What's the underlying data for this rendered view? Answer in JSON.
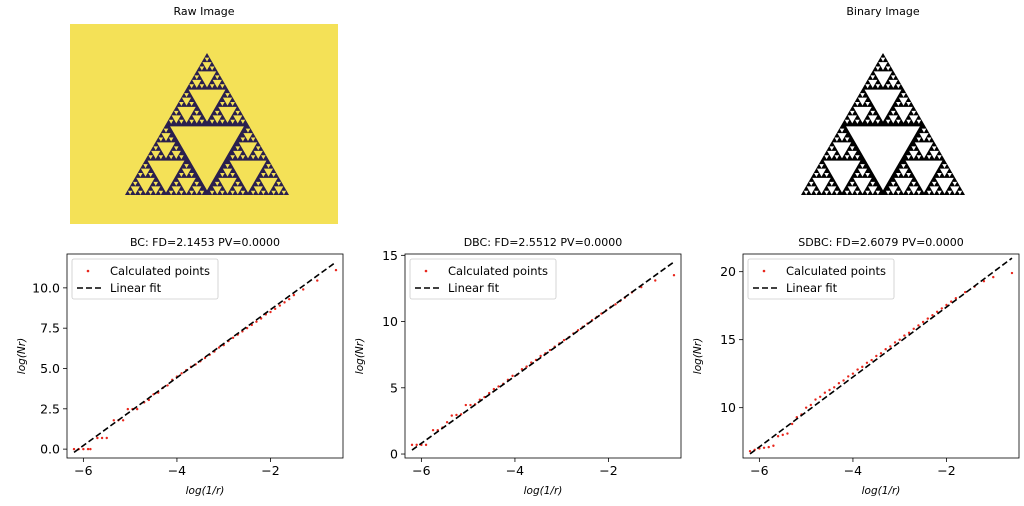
{
  "raw_image": {
    "title": "Raw Image",
    "background": "#f4e157",
    "fractal_color": "#2a1f4e",
    "hole_color": "#f4e157"
  },
  "binary_image": {
    "title": "Binary Image",
    "background": "#ffffff",
    "fractal_color": "#000000",
    "hole_color": "#ffffff"
  },
  "colors": {
    "points": "#e8261c",
    "fit": "#000000"
  },
  "legend": {
    "points_label": "Calculated points",
    "fit_label": "Linear fit",
    "placement": "upper-left"
  },
  "chart_data": [
    {
      "type": "scatter",
      "title": "BC: FD=2.1453 PV=0.0000",
      "xlabel": "log(1/r)",
      "ylabel": "log(Nr)",
      "xlim": [
        -6.35,
        -0.45
      ],
      "ylim": [
        -0.55,
        12.1
      ],
      "xticks": [
        -6,
        -4,
        -2
      ],
      "xtick_labels": [
        "−6",
        "−4",
        "−2"
      ],
      "yticks": [
        0,
        2.5,
        5,
        7.5,
        10
      ],
      "ytick_labels": [
        "0.0",
        "2.5",
        "5.0",
        "7.5",
        "10.0"
      ],
      "grid": false,
      "legend": "upper-left",
      "fit": {
        "x": [
          -6.2,
          -0.6
        ],
        "y": [
          -0.2,
          11.6
        ]
      },
      "points": [
        [
          -6.2,
          0.0
        ],
        [
          -6.1,
          0.0
        ],
        [
          -6.0,
          0.0
        ],
        [
          -5.9,
          0.0
        ],
        [
          -5.85,
          0.0
        ],
        [
          -5.7,
          0.69
        ],
        [
          -5.6,
          0.69
        ],
        [
          -5.5,
          0.69
        ],
        [
          -5.35,
          1.79
        ],
        [
          -5.25,
          1.79
        ],
        [
          -5.15,
          1.79
        ],
        [
          -5.05,
          2.48
        ],
        [
          -4.95,
          2.48
        ],
        [
          -4.85,
          2.48
        ],
        [
          -4.7,
          2.9
        ],
        [
          -4.6,
          3.05
        ],
        [
          -4.5,
          3.4
        ],
        [
          -4.4,
          3.5
        ],
        [
          -4.3,
          3.8
        ],
        [
          -4.2,
          3.95
        ],
        [
          -4.1,
          4.3
        ],
        [
          -4.0,
          4.5
        ],
        [
          -3.9,
          4.7
        ],
        [
          -3.8,
          4.9
        ],
        [
          -3.7,
          5.1
        ],
        [
          -3.6,
          5.25
        ],
        [
          -3.5,
          5.45
        ],
        [
          -3.4,
          5.65
        ],
        [
          -3.3,
          5.85
        ],
        [
          -3.2,
          6.05
        ],
        [
          -3.1,
          6.3
        ],
        [
          -3.0,
          6.45
        ],
        [
          -2.9,
          6.7
        ],
        [
          -2.8,
          6.9
        ],
        [
          -2.7,
          7.1
        ],
        [
          -2.6,
          7.3
        ],
        [
          -2.5,
          7.5
        ],
        [
          -2.4,
          7.7
        ],
        [
          -2.3,
          7.9
        ],
        [
          -2.2,
          8.1
        ],
        [
          -2.1,
          8.35
        ],
        [
          -2.0,
          8.5
        ],
        [
          -1.9,
          8.7
        ],
        [
          -1.8,
          8.9
        ],
        [
          -1.7,
          9.1
        ],
        [
          -1.6,
          9.3
        ],
        [
          -1.5,
          9.55
        ],
        [
          -1.3,
          9.9
        ],
        [
          -1.0,
          10.45
        ],
        [
          -0.6,
          11.1
        ]
      ]
    },
    {
      "type": "scatter",
      "title": "DBC: FD=2.5512 PV=0.0000",
      "xlabel": "log(1/r)",
      "ylabel": "log(Nr)",
      "xlim": [
        -6.35,
        -0.45
      ],
      "ylim": [
        -0.3,
        15.1
      ],
      "xticks": [
        -6,
        -4,
        -2
      ],
      "xtick_labels": [
        "−6",
        "−4",
        "−2"
      ],
      "yticks": [
        0,
        5,
        10,
        15
      ],
      "ytick_labels": [
        "0",
        "5",
        "10",
        "15"
      ],
      "grid": false,
      "legend": "upper-left",
      "fit": {
        "x": [
          -6.2,
          -0.6
        ],
        "y": [
          0.3,
          14.5
        ]
      },
      "points": [
        [
          -6.2,
          0.69
        ],
        [
          -6.1,
          0.69
        ],
        [
          -6.0,
          0.69
        ],
        [
          -5.9,
          0.69
        ],
        [
          -5.75,
          1.8
        ],
        [
          -5.65,
          1.8
        ],
        [
          -5.55,
          2.0
        ],
        [
          -5.45,
          2.4
        ],
        [
          -5.35,
          2.9
        ],
        [
          -5.25,
          2.95
        ],
        [
          -5.15,
          3.0
        ],
        [
          -5.05,
          3.7
        ],
        [
          -4.95,
          3.7
        ],
        [
          -4.85,
          3.75
        ],
        [
          -4.75,
          4.1
        ],
        [
          -4.65,
          4.3
        ],
        [
          -4.55,
          4.6
        ],
        [
          -4.45,
          4.9
        ],
        [
          -4.35,
          5.1
        ],
        [
          -4.25,
          5.3
        ],
        [
          -4.15,
          5.6
        ],
        [
          -4.05,
          5.9
        ],
        [
          -3.95,
          6.0
        ],
        [
          -3.85,
          6.4
        ],
        [
          -3.75,
          6.6
        ],
        [
          -3.65,
          6.9
        ],
        [
          -3.55,
          7.1
        ],
        [
          -3.45,
          7.4
        ],
        [
          -3.35,
          7.6
        ],
        [
          -3.25,
          7.85
        ],
        [
          -3.15,
          8.1
        ],
        [
          -3.05,
          8.35
        ],
        [
          -2.95,
          8.6
        ],
        [
          -2.85,
          8.8
        ],
        [
          -2.75,
          9.1
        ],
        [
          -2.65,
          9.35
        ],
        [
          -2.55,
          9.6
        ],
        [
          -2.45,
          9.85
        ],
        [
          -2.35,
          10.1
        ],
        [
          -2.25,
          10.35
        ],
        [
          -2.15,
          10.6
        ],
        [
          -2.05,
          10.85
        ],
        [
          -1.95,
          11.1
        ],
        [
          -1.85,
          11.3
        ],
        [
          -1.75,
          11.55
        ],
        [
          -1.65,
          11.8
        ],
        [
          -1.5,
          12.2
        ],
        [
          -1.3,
          12.6
        ],
        [
          -1.0,
          13.1
        ],
        [
          -0.6,
          13.5
        ]
      ]
    },
    {
      "type": "scatter",
      "title": "SDBC: FD=2.6079 PV=0.0000",
      "xlabel": "log(1/r)",
      "ylabel": "log(Nr)",
      "xlim": [
        -6.35,
        -0.45
      ],
      "ylim": [
        6.3,
        21.3
      ],
      "xticks": [
        -6,
        -4,
        -2
      ],
      "xtick_labels": [
        "−6",
        "−4",
        "−2"
      ],
      "yticks": [
        10,
        15,
        20
      ],
      "ytick_labels": [
        "10",
        "15",
        "20"
      ],
      "grid": false,
      "legend": "upper-left",
      "fit": {
        "x": [
          -6.2,
          -0.6
        ],
        "y": [
          6.6,
          21.0
        ]
      },
      "points": [
        [
          -6.2,
          6.8
        ],
        [
          -6.1,
          6.9
        ],
        [
          -6.0,
          7.0
        ],
        [
          -5.9,
          7.05
        ],
        [
          -5.8,
          7.1
        ],
        [
          -5.7,
          7.2
        ],
        [
          -5.6,
          7.9
        ],
        [
          -5.5,
          8.0
        ],
        [
          -5.4,
          8.1
        ],
        [
          -5.3,
          8.8
        ],
        [
          -5.2,
          9.3
        ],
        [
          -5.1,
          9.5
        ],
        [
          -5.0,
          10.0
        ],
        [
          -4.9,
          10.2
        ],
        [
          -4.8,
          10.6
        ],
        [
          -4.7,
          10.8
        ],
        [
          -4.6,
          11.1
        ],
        [
          -4.5,
          11.3
        ],
        [
          -4.4,
          11.5
        ],
        [
          -4.3,
          11.8
        ],
        [
          -4.2,
          12.0
        ],
        [
          -4.1,
          12.3
        ],
        [
          -4.0,
          12.5
        ],
        [
          -3.9,
          12.8
        ],
        [
          -3.8,
          13.0
        ],
        [
          -3.7,
          13.3
        ],
        [
          -3.6,
          13.5
        ],
        [
          -3.5,
          13.8
        ],
        [
          -3.4,
          14.0
        ],
        [
          -3.3,
          14.3
        ],
        [
          -3.2,
          14.5
        ],
        [
          -3.1,
          14.8
        ],
        [
          -3.0,
          15.0
        ],
        [
          -2.9,
          15.3
        ],
        [
          -2.8,
          15.5
        ],
        [
          -2.7,
          15.8
        ],
        [
          -2.6,
          16.05
        ],
        [
          -2.5,
          16.3
        ],
        [
          -2.4,
          16.55
        ],
        [
          -2.3,
          16.8
        ],
        [
          -2.2,
          17.05
        ],
        [
          -2.1,
          17.3
        ],
        [
          -2.0,
          17.55
        ],
        [
          -1.9,
          17.8
        ],
        [
          -1.8,
          18.05
        ],
        [
          -1.6,
          18.5
        ],
        [
          -1.4,
          18.9
        ],
        [
          -1.2,
          19.3
        ],
        [
          -1.0,
          19.6
        ],
        [
          -0.6,
          19.9
        ]
      ]
    }
  ]
}
